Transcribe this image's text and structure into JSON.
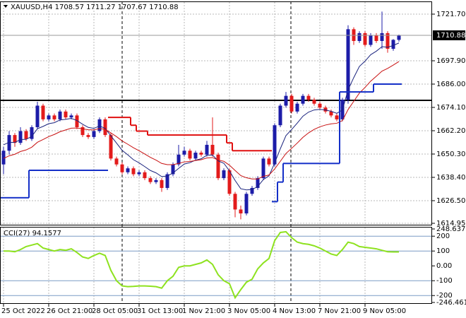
{
  "chart_data": [
    {
      "type": "candlestick",
      "title": "XAUUSD,H4  1708.57 1711.27 1707.67 1710.88",
      "categories": [
        "25 Oct 2022",
        null,
        null,
        null,
        null,
        null,
        null,
        null,
        "26 Oct 21:00",
        null,
        null,
        null,
        null,
        null,
        null,
        null,
        "28 Oct 05:00",
        null,
        null,
        null,
        null,
        null,
        null,
        null,
        "31 Oct 13:00",
        null,
        null,
        null,
        null,
        null,
        null,
        null,
        "1 Nov 21:00",
        null,
        null,
        null,
        null,
        null,
        null,
        null,
        "3 Nov 05:00",
        null,
        null,
        null,
        null,
        null,
        null,
        null,
        "4 Nov 13:00",
        null,
        null,
        null,
        null,
        null,
        null,
        null,
        "7 Nov 21:00",
        null,
        null,
        null,
        null,
        null,
        null,
        null,
        "9 Nov 05:00",
        null,
        null,
        null,
        null,
        null,
        null
      ],
      "open": [
        1645,
        1652,
        1660,
        1656,
        1662,
        1658,
        1664,
        1675,
        1668,
        1670,
        1668,
        1672,
        1669,
        1670,
        1664,
        1660,
        1659,
        1662,
        1668,
        1660,
        1648,
        1645,
        1641,
        1643,
        1640,
        1641,
        1638,
        1636,
        1637,
        1633,
        1640,
        1645,
        1650,
        1652,
        1648,
        1651,
        1650,
        1655,
        1650,
        1638,
        1642,
        1630,
        1622,
        1620,
        1630,
        1633,
        1638,
        1648,
        1645,
        1665,
        1675,
        1680,
        1672,
        1676,
        1680,
        1678,
        1676,
        1674,
        1672,
        1670,
        1668,
        1678,
        1714,
        1708,
        1712,
        1706,
        1711,
        1708,
        1712,
        1704,
        1708.57
      ],
      "high": [
        1654,
        1662,
        1661,
        1664,
        1663,
        1665,
        1677,
        1676,
        1671,
        1671,
        1673,
        1673,
        1671,
        1671,
        1665,
        1661,
        1663,
        1669,
        1669,
        1661,
        1649,
        1646,
        1644,
        1644,
        1642,
        1642,
        1639,
        1638,
        1638,
        1641,
        1646,
        1655,
        1654,
        1653,
        1652,
        1652,
        1657,
        1669,
        1651,
        1643,
        1643,
        1631,
        1624,
        1631,
        1634,
        1639,
        1649,
        1649,
        1666,
        1676,
        1682,
        1681,
        1677,
        1681,
        1681,
        1679,
        1677,
        1675,
        1673,
        1671,
        1679,
        1716,
        1715,
        1713,
        1713,
        1712,
        1712,
        1723,
        1713,
        1709,
        1711.27
      ],
      "low": [
        1640,
        1650,
        1654,
        1655,
        1657,
        1657,
        1663,
        1667,
        1667,
        1667,
        1667,
        1668,
        1668,
        1663,
        1659,
        1658,
        1658,
        1661,
        1659,
        1647,
        1644,
        1640,
        1640,
        1639,
        1639,
        1637,
        1635,
        1635,
        1631,
        1632,
        1639,
        1644,
        1649,
        1647,
        1647,
        1649,
        1649,
        1649,
        1637,
        1637,
        1629,
        1618,
        1617,
        1619,
        1629,
        1632,
        1637,
        1644,
        1644,
        1664,
        1674,
        1671,
        1671,
        1675,
        1677,
        1675,
        1673,
        1671,
        1669,
        1667,
        1667,
        1676,
        1706,
        1707,
        1705,
        1705,
        1707,
        1704,
        1702,
        1703,
        1707.67
      ],
      "close": [
        1652,
        1660,
        1656,
        1662,
        1658,
        1664,
        1675,
        1668,
        1670,
        1668,
        1672,
        1669,
        1670,
        1664,
        1660,
        1659,
        1662,
        1668,
        1660,
        1648,
        1645,
        1641,
        1643,
        1640,
        1641,
        1638,
        1636,
        1637,
        1633,
        1640,
        1645,
        1650,
        1652,
        1648,
        1651,
        1650,
        1655,
        1650,
        1638,
        1642,
        1630,
        1622,
        1620,
        1630,
        1633,
        1638,
        1648,
        1645,
        1665,
        1675,
        1680,
        1672,
        1676,
        1680,
        1678,
        1676,
        1674,
        1672,
        1670,
        1668,
        1678,
        1714,
        1708,
        1712,
        1706,
        1711,
        1708,
        1712,
        1704,
        1708.57,
        1710.88
      ],
      "up_color": "#1c1ca8",
      "down_color": "#e31b1b",
      "series": [
        {
          "style": "line",
          "color": "#1a237e",
          "values": [
            1655,
            1656.3,
            1656.2,
            1657.7,
            1657.8,
            1659.3,
            1663.2,
            1664.4,
            1665.8,
            1666.3,
            1667.7,
            1668,
            1668.5,
            1667.4,
            1665.5,
            1663.9,
            1663.4,
            1664.6,
            1663.4,
            1659.6,
            1655.9,
            1652.2,
            1649.9,
            1647.4,
            1645.8,
            1643.9,
            1641.9,
            1640.7,
            1638.8,
            1639.1,
            1640.6,
            1643,
            1645.2,
            1645.9,
            1647.2,
            1647.9,
            1649.7,
            1649.8,
            1646.8,
            1645.6,
            1641.7,
            1636.8,
            1632.6,
            1632,
            1632.2,
            1633.7,
            1637.3,
            1639.2,
            1645.7,
            1653,
            1659.7,
            1662.8,
            1666.1,
            1669.6,
            1671.7,
            1672.8,
            1673.1,
            1672.8,
            1672.1,
            1671.1,
            1672.8,
            1683.1,
            1689.3,
            1695,
            1697.7,
            1701,
            1702.8,
            1705.1,
            1704.8,
            1705.7,
            1707
          ]
        },
        {
          "style": "line",
          "color": "#c81010",
          "values": [
            1648,
            1649.4,
            1650.2,
            1651.6,
            1652.4,
            1653.8,
            1656.3,
            1657.7,
            1659.2,
            1660.3,
            1661.7,
            1662.6,
            1663.5,
            1663.6,
            1663.2,
            1662.7,
            1662.6,
            1663.3,
            1662.9,
            1661.1,
            1659.2,
            1657,
            1655.3,
            1653.5,
            1652,
            1650.3,
            1648.6,
            1647.2,
            1645.5,
            1644.9,
            1644.9,
            1645.5,
            1646.3,
            1646.5,
            1647,
            1647.4,
            1648.3,
            1648.5,
            1647.2,
            1646.6,
            1644.6,
            1641.9,
            1639.3,
            1638.2,
            1637.6,
            1637.6,
            1638.9,
            1639.6,
            1642.7,
            1646.6,
            1650.6,
            1653.2,
            1655.9,
            1658.8,
            1661.1,
            1662.9,
            1664.2,
            1665.1,
            1665.7,
            1666,
            1667.4,
            1673,
            1677.2,
            1681.4,
            1684.3,
            1687.5,
            1690,
            1692.6,
            1694,
            1695.7,
            1697.5
          ]
        },
        {
          "style": "step",
          "color": "#1530c8",
          "values": [
            1628,
            1628,
            1628,
            1628,
            1628,
            1642,
            1642,
            1642,
            1642,
            1642,
            1642,
            1642,
            1642,
            1642,
            1642,
            1642,
            1642,
            1642,
            1642,
            null,
            null,
            null,
            null,
            null,
            null,
            null,
            null,
            null,
            null,
            null,
            null,
            null,
            null,
            null,
            null,
            null,
            null,
            null,
            null,
            null,
            null,
            null,
            null,
            null,
            null,
            null,
            null,
            null,
            1626,
            1636,
            1645.5,
            1645.5,
            1645.5,
            1645.5,
            1645.5,
            1645.5,
            1645.5,
            1645.5,
            1645.5,
            1645.5,
            1682,
            1682,
            1682,
            1682,
            1682,
            1682,
            1686,
            1686,
            1686,
            1686,
            1686
          ]
        },
        {
          "style": "step",
          "color": "#e01010",
          "values": [
            null,
            null,
            null,
            null,
            null,
            null,
            null,
            null,
            null,
            null,
            null,
            null,
            null,
            null,
            null,
            null,
            null,
            null,
            null,
            1669,
            1669,
            1669,
            1669,
            1665,
            1662,
            1662,
            1660,
            1660,
            1660,
            1660,
            1660,
            1660,
            1660,
            1660,
            1660,
            1660,
            1660,
            1660,
            1660,
            1660,
            1656,
            1652,
            1652,
            1652,
            1652,
            1652,
            1652,
            1652,
            null,
            null,
            null,
            null,
            null,
            null,
            null,
            null,
            null,
            null,
            null,
            null,
            null,
            null,
            null,
            null,
            null,
            null,
            null,
            null,
            null,
            null,
            null
          ]
        }
      ],
      "hline": 1677.7,
      "ylim": [
        1614.23,
        1728.19
      ],
      "yticks": [
        {
          "value": 1721.7,
          "label": "1721.70"
        },
        {
          "value": 1697.9,
          "label": "1697.90"
        },
        {
          "value": 1686,
          "label": "1686.00"
        },
        {
          "value": 1674.1,
          "label": "1674.10"
        },
        {
          "value": 1662.2,
          "label": "1662.20"
        },
        {
          "value": 1650.3,
          "label": "1650.30"
        },
        {
          "value": 1638.4,
          "label": "1638.40"
        },
        {
          "value": 1626.5,
          "label": "1626.50"
        },
        1614.95
      ],
      "grid": true
    },
    {
      "type": "line",
      "title": "CCI(27) 94.1577",
      "series": [
        {
          "color": "#8ee21f",
          "values": [
            100,
            100,
            95,
            110,
            130,
            140,
            150,
            120,
            110,
            100,
            110,
            105,
            115,
            90,
            60,
            50,
            70,
            85,
            70,
            -30,
            -100,
            -135,
            -140,
            -138,
            -135,
            -135,
            -137,
            -140,
            -150,
            -100,
            -70,
            -10,
            0,
            0,
            10,
            20,
            40,
            10,
            -60,
            -100,
            -120,
            -215,
            -160,
            -110,
            -90,
            -20,
            20,
            50,
            170,
            225,
            230,
            190,
            160,
            150,
            145,
            135,
            120,
            100,
            80,
            70,
            110,
            160,
            150,
            130,
            125,
            120,
            115,
            105,
            95,
            94,
            94.1577
          ]
        }
      ],
      "levels": [
        200,
        100,
        -100,
        -200
      ],
      "ylim": [
        -246.4615,
        248.6378
      ],
      "yticks": [
        248.6378,
        200,
        100,
        {
          "value": 0,
          "label": "0.00"
        },
        -100,
        -200,
        -246.4615
      ]
    }
  ]
}
